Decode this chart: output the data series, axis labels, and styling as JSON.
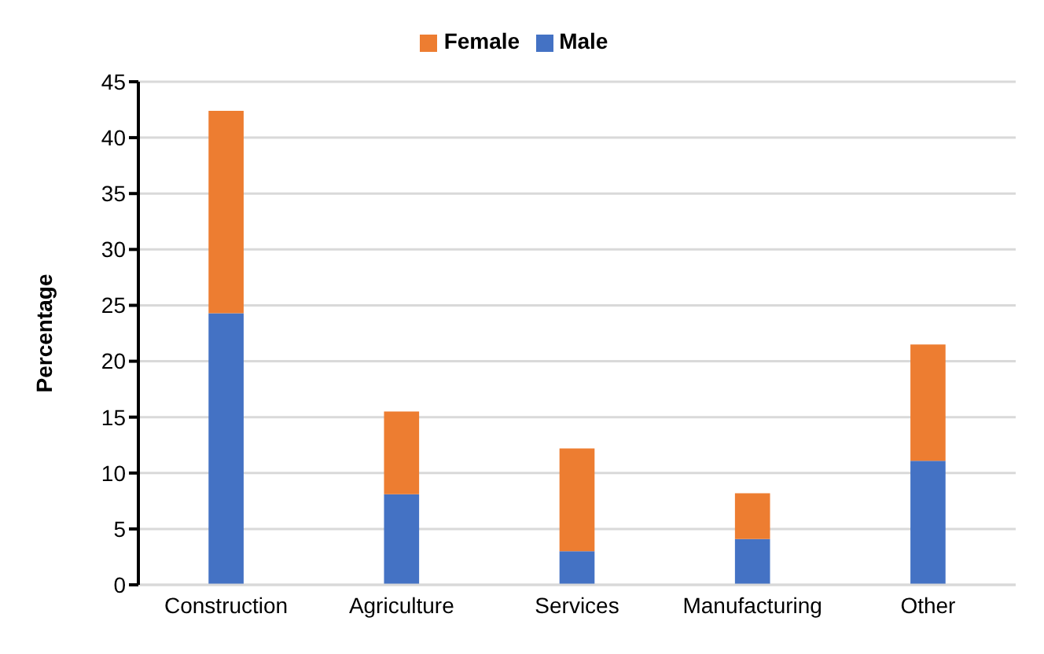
{
  "chart_data": {
    "type": "bar",
    "stacked": true,
    "ylabel": "Percentage",
    "categories": [
      "Construction",
      "Agriculture",
      "Services",
      "Manufacturing",
      "Other"
    ],
    "series": [
      {
        "name": "Male",
        "color": "#4472c4",
        "values": [
          24.3,
          8.1,
          3.0,
          4.1,
          11.1
        ]
      },
      {
        "name": "Female",
        "color": "#ed7d31",
        "values": [
          18.1,
          7.4,
          9.2,
          4.1,
          10.4
        ]
      }
    ],
    "ylim": [
      0,
      45
    ],
    "yticks": [
      0,
      5,
      10,
      15,
      20,
      25,
      30,
      35,
      40,
      45
    ],
    "grid": "y",
    "legend": "top"
  }
}
